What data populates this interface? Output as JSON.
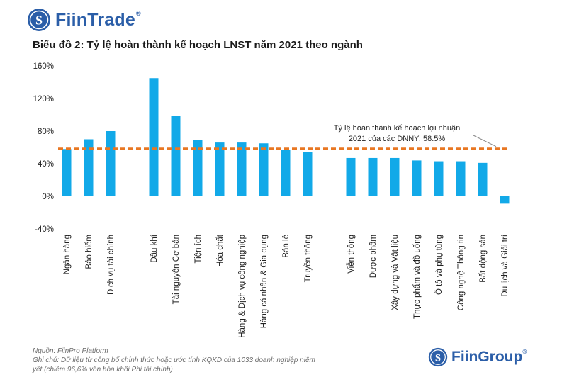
{
  "brand_top": {
    "name": "FiinTrade",
    "reg": "®"
  },
  "brand_bottom": {
    "name": "FiinGroup",
    "reg": "®"
  },
  "title": "Biểu đồ 2: Tỷ lệ hoàn thành kế hoạch LNST năm 2021 theo ngành",
  "footer": {
    "source": "Nguồn: FiinPro Platform",
    "note_line1": "Ghi chú: Dữ liệu từ công bố chính thức hoặc ước tính KQKD của 1033 doanh nghiệp niêm",
    "note_line2": "yết (chiếm 96,6% vốn hóa khối Phi tài chính)"
  },
  "colors": {
    "bar": "#12a9e8",
    "ref_line": "#e87722",
    "brand": "#2b5ea8"
  },
  "chart_data": {
    "type": "bar",
    "title": "Biểu đồ 2: Tỷ lệ hoàn thành kế hoạch LNST năm 2021 theo ngành",
    "xlabel": "",
    "ylabel": "",
    "ylim": [
      -40,
      160
    ],
    "y_ticks": [
      160,
      120,
      80,
      40,
      0,
      -40
    ],
    "y_tick_labels": [
      "160%",
      "120%",
      "80%",
      "40%",
      "0%",
      "-40%"
    ],
    "grid": false,
    "legend": "none",
    "groups": [
      {
        "categories": [
          "Ngân hàng",
          "Bảo hiểm",
          "Dịch vụ tài chính"
        ],
        "values": [
          58,
          70,
          80
        ]
      },
      {
        "categories": [
          "Dầu khí",
          "Tài nguyên Cơ bản",
          "Tiện ích",
          "Hóa chất",
          "Hàng & Dịch vụ công nghiệp",
          "Hàng cá nhân & Gia dụng",
          "Bán lẻ",
          "Truyền thông"
        ],
        "values": [
          145,
          99,
          69,
          66,
          66,
          65,
          57,
          54
        ]
      },
      {
        "categories": [
          "Viễn thông",
          "Dược phẩm",
          "Xây dựng và Vật liệu",
          "Thực phẩm và đồ uống",
          "Ô tô và phụ tùng",
          "Công nghệ Thông tin",
          "Bất động sản",
          "Du lịch và Giải trí"
        ],
        "values": [
          47,
          47,
          47,
          44,
          43,
          43,
          41,
          -9
        ]
      }
    ],
    "reference_line": {
      "value": 58.5,
      "label_line1": "Tỷ lệ hoàn thành kế hoạch lợi nhuận",
      "label_line2": "2021 của các DNNY: 58.5%"
    }
  }
}
